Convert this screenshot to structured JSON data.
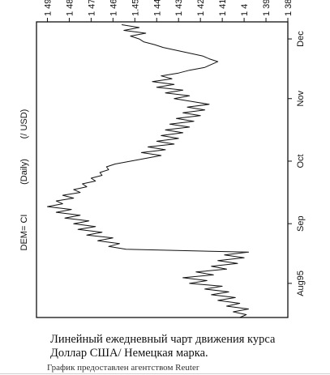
{
  "chart_data": {
    "type": "line",
    "title": "DEM= CI",
    "period": "(Daily)",
    "units": "(/ USD)",
    "y_ticks": [
      "1 49",
      "1 48",
      "1 47",
      "1 46",
      "1.45",
      "1 44",
      "1 43",
      "1 42",
      "1 41",
      "1 4",
      "1 39",
      "1 38"
    ],
    "y_values": [
      1.49,
      1.48,
      1.47,
      1.46,
      1.45,
      1.44,
      1.43,
      1.42,
      1.41,
      1.4,
      1.39,
      1.38
    ],
    "ylim": [
      1.38,
      1.495
    ],
    "x_ticks": [
      {
        "label": "Aug95",
        "day": 12,
        "bold": false
      },
      {
        "label": "Sep",
        "day": 33,
        "bold": false
      },
      {
        "label": "Oct",
        "day": 55,
        "bold": false
      },
      {
        "label": "Nov",
        "day": 77,
        "bold": false
      },
      {
        "label": "Dec",
        "day": 98,
        "bold": false
      }
    ],
    "xlim": [
      0,
      104
    ],
    "grid": false,
    "series": [
      {
        "values": [
          [
            0,
            1.402
          ],
          [
            1,
            1.399
          ],
          [
            2,
            1.405
          ],
          [
            3,
            1.398
          ],
          [
            4,
            1.408
          ],
          [
            5,
            1.402
          ],
          [
            6,
            1.412
          ],
          [
            7,
            1.404
          ],
          [
            8,
            1.415
          ],
          [
            9,
            1.407
          ],
          [
            10,
            1.418
          ],
          [
            11,
            1.41
          ],
          [
            12,
            1.425
          ],
          [
            13,
            1.417
          ],
          [
            14,
            1.428
          ],
          [
            15,
            1.414
          ],
          [
            16,
            1.422
          ],
          [
            17,
            1.408
          ],
          [
            18,
            1.415
          ],
          [
            19,
            1.403
          ],
          [
            20,
            1.412
          ],
          [
            21,
            1.4
          ],
          [
            22,
            1.409
          ],
          [
            23,
            1.398
          ],
          [
            24,
            1.454
          ],
          [
            25,
            1.462
          ],
          [
            26,
            1.457
          ],
          [
            27,
            1.467
          ],
          [
            28,
            1.46
          ],
          [
            29,
            1.472
          ],
          [
            30,
            1.465
          ],
          [
            31,
            1.476
          ],
          [
            32,
            1.468
          ],
          [
            33,
            1.478
          ],
          [
            34,
            1.471
          ],
          [
            35,
            1.482
          ],
          [
            36,
            1.475
          ],
          [
            37,
            1.486
          ],
          [
            38,
            1.479
          ],
          [
            39,
            1.49
          ],
          [
            40,
            1.483
          ],
          [
            41,
            1.486
          ],
          [
            42,
            1.478
          ],
          [
            43,
            1.483
          ],
          [
            44,
            1.475
          ],
          [
            45,
            1.478
          ],
          [
            46,
            1.472
          ],
          [
            47,
            1.474
          ],
          [
            48,
            1.468
          ],
          [
            49,
            1.47
          ],
          [
            50,
            1.465
          ],
          [
            51,
            1.466
          ],
          [
            52,
            1.462
          ],
          [
            53,
            1.463
          ],
          [
            54,
            1.459
          ],
          [
            55,
            1.452
          ],
          [
            56,
            1.445
          ],
          [
            57,
            1.438
          ],
          [
            58,
            1.447
          ],
          [
            59,
            1.436
          ],
          [
            60,
            1.444
          ],
          [
            61,
            1.432
          ],
          [
            62,
            1.44
          ],
          [
            63,
            1.43
          ],
          [
            64,
            1.438
          ],
          [
            65,
            1.428
          ],
          [
            66,
            1.436
          ],
          [
            67,
            1.425
          ],
          [
            68,
            1.434
          ],
          [
            69,
            1.423
          ],
          [
            70,
            1.431
          ],
          [
            71,
            1.42
          ],
          [
            72,
            1.428
          ],
          [
            73,
            1.418
          ],
          [
            74,
            1.426
          ],
          [
            75,
            1.416
          ],
          [
            76,
            1.424
          ],
          [
            77,
            1.432
          ],
          [
            78,
            1.425
          ],
          [
            79,
            1.436
          ],
          [
            80,
            1.428
          ],
          [
            81,
            1.44
          ],
          [
            82,
            1.432
          ],
          [
            83,
            1.442
          ],
          [
            84,
            1.433
          ],
          [
            85,
            1.438
          ],
          [
            86,
            1.43
          ],
          [
            87,
            1.425
          ],
          [
            88,
            1.418
          ],
          [
            89,
            1.415
          ],
          [
            90,
            1.412
          ],
          [
            91,
            1.416
          ],
          [
            92,
            1.419
          ],
          [
            93,
            1.425
          ],
          [
            94,
            1.431
          ],
          [
            95,
            1.437
          ],
          [
            96,
            1.441
          ],
          [
            97,
            1.446
          ],
          [
            98,
            1.448
          ],
          [
            99,
            1.452
          ],
          [
            100,
            1.445
          ],
          [
            101,
            1.455
          ],
          [
            102,
            1.448
          ],
          [
            103,
            1.456
          ]
        ]
      }
    ],
    "line_color": "#111111"
  },
  "caption": {
    "line1": "Линейный ежедневный чарт движения курса",
    "line2": "Доллар США/ Немецкая марка.",
    "credit": "График предоставлен агентством Reuter"
  }
}
